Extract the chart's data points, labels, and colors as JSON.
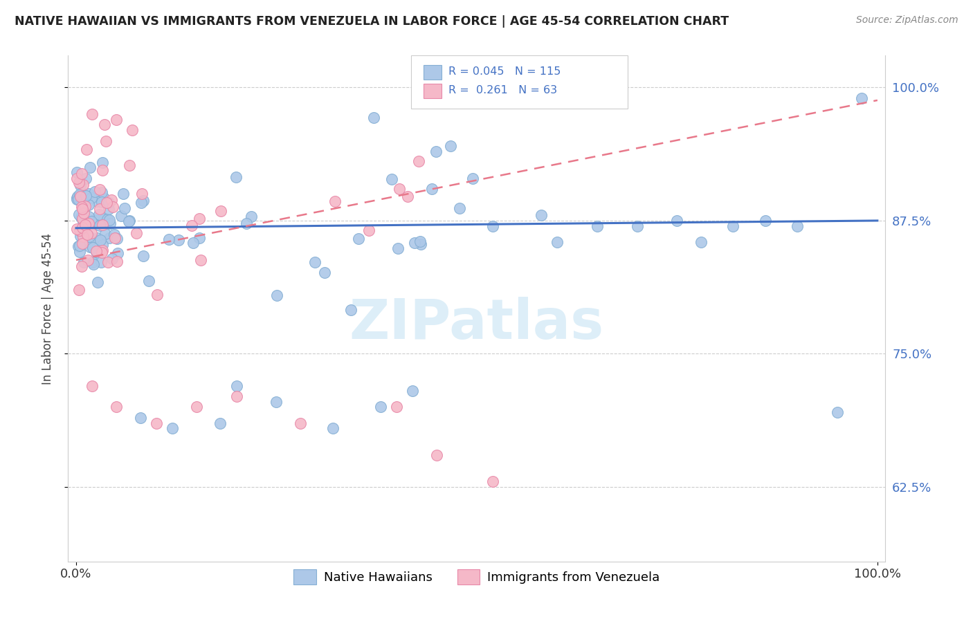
{
  "title": "NATIVE HAWAIIAN VS IMMIGRANTS FROM VENEZUELA IN LABOR FORCE | AGE 45-54 CORRELATION CHART",
  "source": "Source: ZipAtlas.com",
  "ylabel": "In Labor Force | Age 45-54",
  "xlim": [
    -0.01,
    1.01
  ],
  "ylim": [
    0.555,
    1.03
  ],
  "yticks": [
    0.625,
    0.75,
    0.875,
    1.0
  ],
  "ytick_labels": [
    "62.5%",
    "75.0%",
    "87.5%",
    "100.0%"
  ],
  "xticks": [
    0.0,
    1.0
  ],
  "xtick_labels": [
    "0.0%",
    "100.0%"
  ],
  "blue_dot_color": "#adc8e8",
  "blue_dot_edge": "#85afd4",
  "pink_dot_color": "#f5b8c8",
  "pink_dot_edge": "#e888a8",
  "blue_line_color": "#4472c4",
  "pink_line_color": "#e8788a",
  "trend_blue_y0": 0.868,
  "trend_blue_y1": 0.875,
  "trend_pink_y0": 0.838,
  "trend_pink_y1": 0.988,
  "watermark": "ZIPatlas",
  "watermark_color": "#d8e8f0",
  "legend_r1": "R = 0.045",
  "legend_n1": "N = 115",
  "legend_r2": "R =  0.261",
  "legend_n2": "N = 63"
}
